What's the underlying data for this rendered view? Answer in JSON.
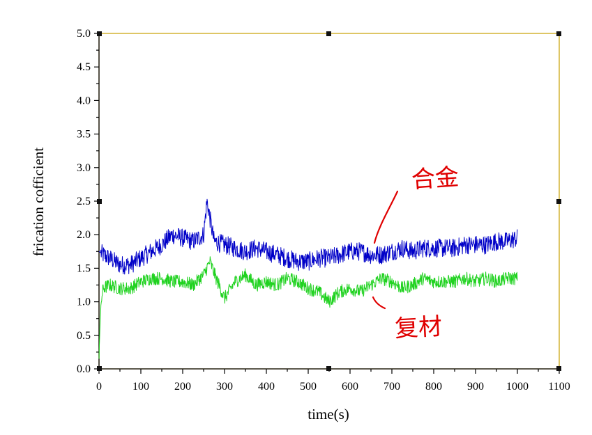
{
  "chart_data": {
    "type": "line",
    "xlabel": "time(s)",
    "ylabel": "frication cofficient",
    "xlim": [
      0,
      1100
    ],
    "ylim": [
      0,
      5.0
    ],
    "x_ticks": [
      "0",
      "100",
      "200",
      "300",
      "400",
      "500",
      "600",
      "700",
      "800",
      "900",
      "1000",
      "1100"
    ],
    "y_ticks": [
      "0.0",
      "0.5",
      "1.0",
      "1.5",
      "2.0",
      "2.5",
      "3.0",
      "3.5",
      "4.0",
      "4.5",
      "5.0"
    ],
    "grid": false,
    "series": [
      {
        "color": "#0000c8",
        "noise": 0.14,
        "x": [
          0,
          10,
          25,
          50,
          75,
          100,
          125,
          150,
          175,
          200,
          225,
          250,
          258,
          275,
          300,
          325,
          350,
          375,
          400,
          425,
          450,
          475,
          500,
          525,
          550,
          575,
          600,
          625,
          650,
          675,
          700,
          725,
          750,
          775,
          800,
          825,
          850,
          875,
          900,
          925,
          950,
          975,
          1000
        ],
        "y": [
          1.75,
          1.7,
          1.65,
          1.55,
          1.55,
          1.65,
          1.75,
          1.85,
          2.0,
          1.95,
          1.9,
          2.0,
          2.5,
          1.9,
          1.85,
          1.8,
          1.75,
          1.8,
          1.75,
          1.7,
          1.65,
          1.6,
          1.6,
          1.65,
          1.65,
          1.7,
          1.75,
          1.75,
          1.7,
          1.7,
          1.75,
          1.8,
          1.75,
          1.8,
          1.8,
          1.8,
          1.8,
          1.85,
          1.85,
          1.85,
          1.9,
          1.9,
          1.95
        ]
      },
      {
        "color": "#1fd21f",
        "noise": 0.1,
        "x": [
          0,
          2,
          5,
          10,
          25,
          50,
          75,
          100,
          125,
          150,
          175,
          200,
          225,
          250,
          265,
          280,
          300,
          325,
          350,
          375,
          400,
          425,
          450,
          475,
          500,
          525,
          550,
          575,
          600,
          625,
          650,
          675,
          700,
          725,
          750,
          775,
          800,
          825,
          850,
          875,
          900,
          925,
          950,
          975,
          1000
        ],
        "y": [
          0.15,
          0.6,
          1.0,
          1.2,
          1.25,
          1.2,
          1.2,
          1.3,
          1.35,
          1.35,
          1.3,
          1.3,
          1.25,
          1.4,
          1.6,
          1.35,
          1.05,
          1.3,
          1.4,
          1.25,
          1.3,
          1.25,
          1.35,
          1.3,
          1.2,
          1.15,
          1.0,
          1.15,
          1.2,
          1.15,
          1.25,
          1.35,
          1.3,
          1.2,
          1.25,
          1.35,
          1.3,
          1.3,
          1.3,
          1.35,
          1.3,
          1.35,
          1.3,
          1.35,
          1.35
        ]
      }
    ],
    "annotations": [
      "合金",
      "复材"
    ]
  }
}
